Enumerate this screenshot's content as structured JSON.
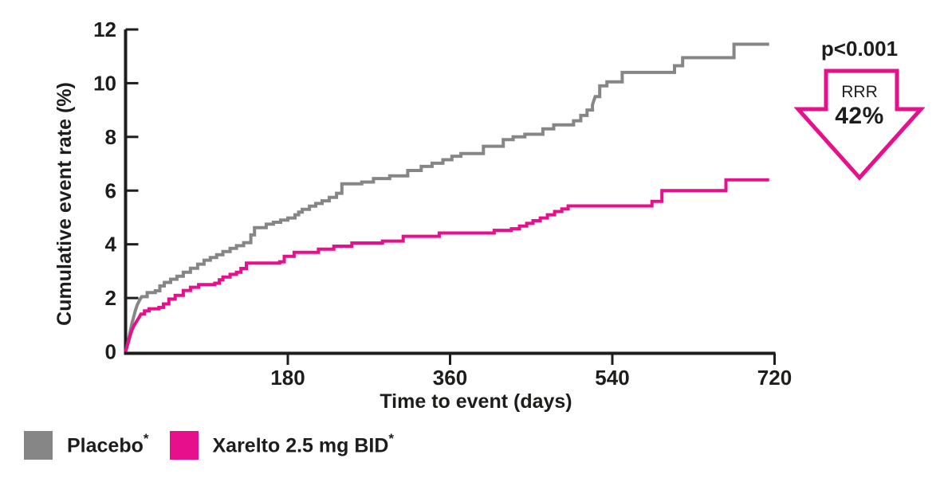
{
  "colors": {
    "axis": "#1d1d1b",
    "placebo": "#868686",
    "xarelto": "#E70F8B",
    "background": "#ffffff"
  },
  "chart_data": {
    "type": "line",
    "subtype": "kaplan-meier-step",
    "title": "",
    "xlabel": "Time to event (days)",
    "ylabel": "Cumulative event rate (%)",
    "xlim": [
      0,
      720
    ],
    "ylim": [
      0,
      12
    ],
    "x_ticks": [
      180,
      360,
      540,
      720
    ],
    "y_ticks": [
      0,
      2,
      4,
      6,
      8,
      10,
      12
    ],
    "grid": false,
    "legend_position": "bottom-left",
    "series": [
      {
        "key": "placebo",
        "name": "Placebo*",
        "color": "#868686",
        "final_value_pct": 11.45,
        "points": [
          [
            0,
            0
          ],
          [
            3,
            0.4
          ],
          [
            5,
            0.75
          ],
          [
            7,
            1.05
          ],
          [
            9,
            1.3
          ],
          [
            11,
            1.55
          ],
          [
            13,
            1.75
          ],
          [
            16,
            1.95
          ],
          [
            18,
            2.05
          ],
          [
            24,
            2.2
          ],
          [
            33,
            2.27
          ],
          [
            38,
            2.45
          ],
          [
            43,
            2.58
          ],
          [
            50,
            2.7
          ],
          [
            57,
            2.81
          ],
          [
            64,
            2.96
          ],
          [
            72,
            3.11
          ],
          [
            80,
            3.26
          ],
          [
            87,
            3.41
          ],
          [
            94,
            3.51
          ],
          [
            101,
            3.61
          ],
          [
            108,
            3.73
          ],
          [
            116,
            3.85
          ],
          [
            123,
            3.95
          ],
          [
            131,
            4.06
          ],
          [
            139,
            4.35
          ],
          [
            143,
            4.62
          ],
          [
            156,
            4.75
          ],
          [
            164,
            4.82
          ],
          [
            172,
            4.9
          ],
          [
            180,
            4.98
          ],
          [
            188,
            5.1
          ],
          [
            192,
            5.2
          ],
          [
            196,
            5.3
          ],
          [
            204,
            5.42
          ],
          [
            211,
            5.52
          ],
          [
            218,
            5.62
          ],
          [
            226,
            5.75
          ],
          [
            234,
            5.9
          ],
          [
            240,
            6.25
          ],
          [
            262,
            6.32
          ],
          [
            275,
            6.45
          ],
          [
            293,
            6.55
          ],
          [
            313,
            6.75
          ],
          [
            328,
            6.9
          ],
          [
            340,
            7.02
          ],
          [
            352,
            7.15
          ],
          [
            362,
            7.28
          ],
          [
            372,
            7.38
          ],
          [
            397,
            7.65
          ],
          [
            419,
            7.9
          ],
          [
            430,
            8.0
          ],
          [
            443,
            8.1
          ],
          [
            463,
            8.3
          ],
          [
            475,
            8.45
          ],
          [
            497,
            8.6
          ],
          [
            505,
            8.8
          ],
          [
            512,
            9.0
          ],
          [
            518,
            9.2
          ],
          [
            521,
            9.5
          ],
          [
            526,
            9.9
          ],
          [
            534,
            10.05
          ],
          [
            551,
            10.4
          ],
          [
            609,
            10.65
          ],
          [
            618,
            10.95
          ],
          [
            675,
            11.45
          ],
          [
            714,
            11.45
          ]
        ]
      },
      {
        "key": "xarelto",
        "name": "Xarelto 2.5 mg BID*",
        "color": "#E70F8B",
        "final_value_pct": 6.4,
        "points": [
          [
            0,
            0
          ],
          [
            3,
            0.35
          ],
          [
            5,
            0.6
          ],
          [
            7,
            0.8
          ],
          [
            9,
            0.95
          ],
          [
            12,
            1.12
          ],
          [
            15,
            1.28
          ],
          [
            17,
            1.4
          ],
          [
            21,
            1.52
          ],
          [
            26,
            1.6
          ],
          [
            37,
            1.65
          ],
          [
            42,
            1.78
          ],
          [
            48,
            1.96
          ],
          [
            55,
            2.1
          ],
          [
            64,
            2.28
          ],
          [
            72,
            2.4
          ],
          [
            81,
            2.5
          ],
          [
            99,
            2.55
          ],
          [
            104,
            2.68
          ],
          [
            108,
            2.78
          ],
          [
            116,
            2.88
          ],
          [
            123,
            2.96
          ],
          [
            128,
            3.1
          ],
          [
            134,
            3.3
          ],
          [
            171,
            3.35
          ],
          [
            176,
            3.55
          ],
          [
            187,
            3.7
          ],
          [
            214,
            3.82
          ],
          [
            231,
            3.93
          ],
          [
            251,
            4.05
          ],
          [
            285,
            4.12
          ],
          [
            308,
            4.3
          ],
          [
            348,
            4.42
          ],
          [
            409,
            4.52
          ],
          [
            428,
            4.58
          ],
          [
            437,
            4.68
          ],
          [
            445,
            4.78
          ],
          [
            452,
            4.88
          ],
          [
            460,
            4.98
          ],
          [
            468,
            5.1
          ],
          [
            476,
            5.22
          ],
          [
            484,
            5.32
          ],
          [
            491,
            5.43
          ],
          [
            584,
            5.6
          ],
          [
            595,
            6.0
          ],
          [
            666,
            6.4
          ],
          [
            714,
            6.4
          ]
        ]
      }
    ]
  },
  "annotation": {
    "p_value": "p<0.001",
    "rrr_label": "RRR",
    "rrr_value": "42%",
    "arrow_color": "#E70F8B",
    "arrow_direction": "down"
  },
  "legend": {
    "items": [
      {
        "label": "Placebo",
        "superscript": "*",
        "color": "#868686"
      },
      {
        "label": "Xarelto 2.5 mg BID",
        "superscript": "*",
        "color": "#E70F8B"
      }
    ]
  }
}
